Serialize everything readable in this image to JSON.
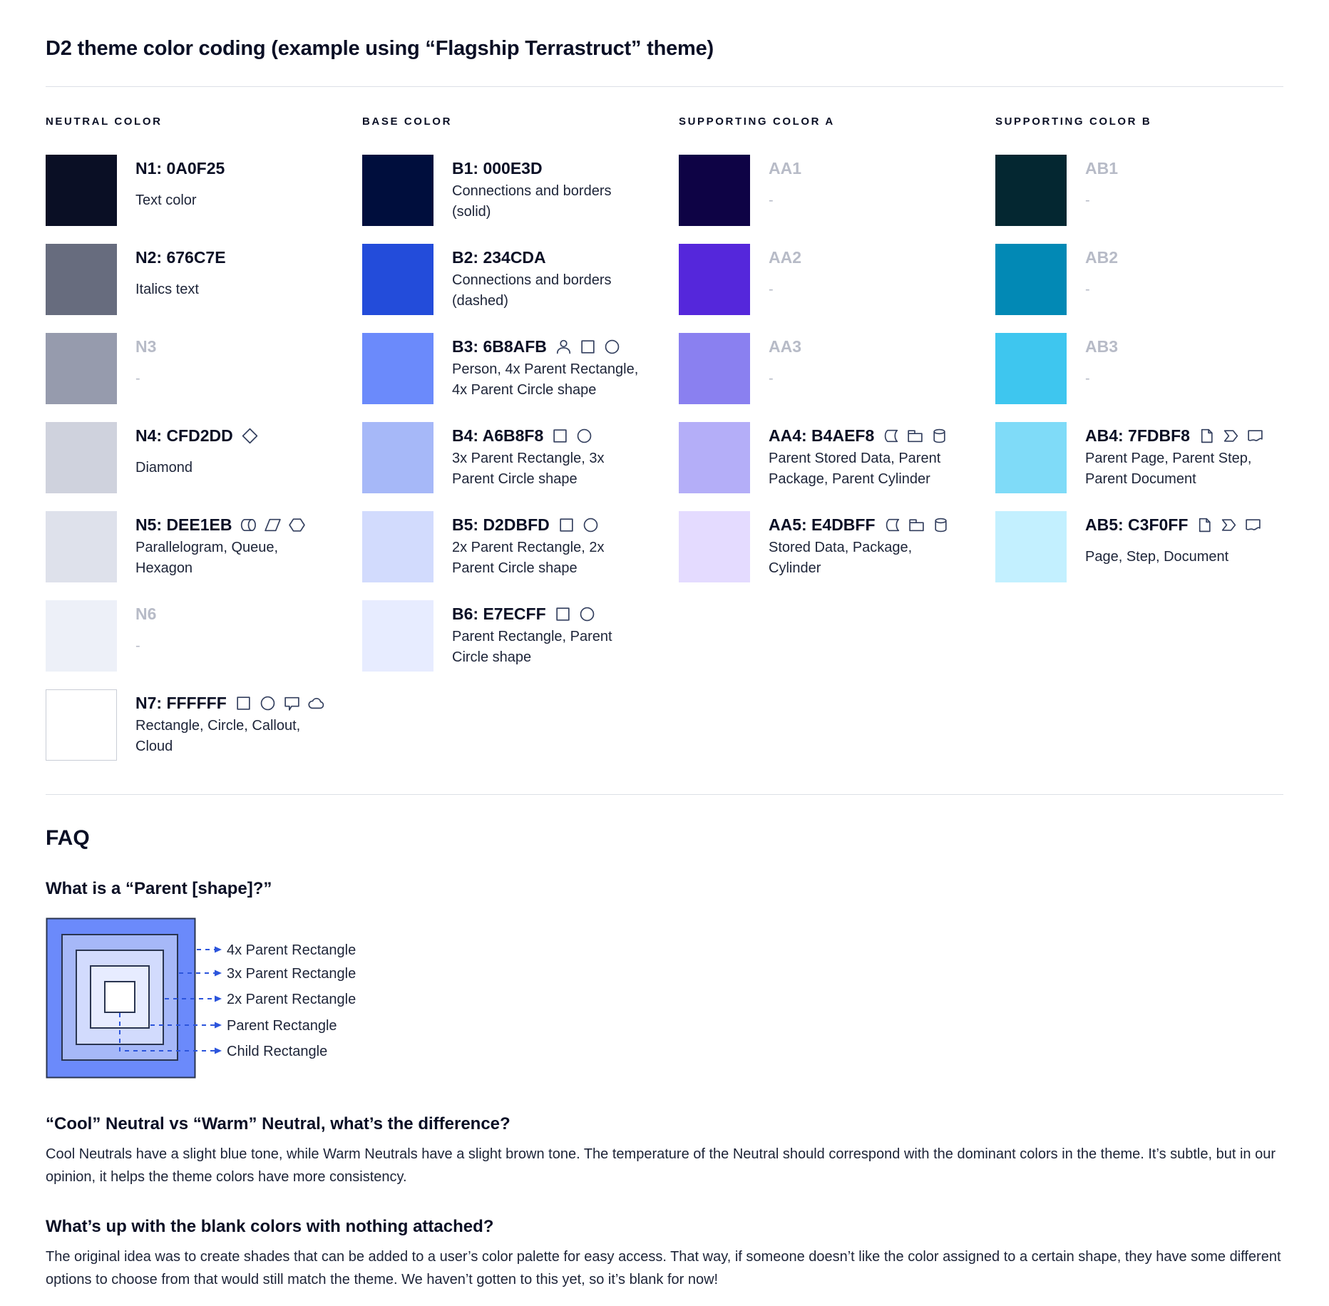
{
  "page": {
    "title": "D2 theme color coding (example using “Flagship Terrastruct” theme)"
  },
  "colors": {
    "text": "#0A0F25",
    "body": "#1D2438",
    "muted": "#B7BBC7",
    "accent": "#2C55DC",
    "icon": "#333F5E",
    "divider": "#DCE0E6",
    "swatchborder": "#C9CDD6"
  },
  "columns": [
    {
      "header": "NEUTRAL COLOR",
      "items": [
        {
          "label": "N1: 0A0F25",
          "desc": "Text color",
          "swatch": "#0A0F25",
          "muted": false,
          "bordered": false,
          "icons": []
        },
        {
          "label": "N2: 676C7E",
          "desc": "Italics text",
          "swatch": "#676C7E",
          "muted": false,
          "bordered": false,
          "icons": []
        },
        {
          "label": "N3",
          "desc": "-",
          "swatch": "#969BAD",
          "muted": true,
          "bordered": false,
          "icons": []
        },
        {
          "label": "N4: CFD2DD",
          "desc": "Diamond",
          "swatch": "#CFD2DD",
          "muted": false,
          "bordered": false,
          "icons": [
            "diamond"
          ]
        },
        {
          "label": "N5: DEE1EB",
          "desc": "Parallelogram, Queue, Hexagon",
          "swatch": "#DEE1EB",
          "muted": false,
          "bordered": false,
          "icons": [
            "queue",
            "parallelogram",
            "hexagon"
          ]
        },
        {
          "label": "N6",
          "desc": "-",
          "swatch": "#EDF0F8",
          "muted": true,
          "bordered": false,
          "icons": []
        },
        {
          "label": "N7: FFFFFF",
          "desc": "Rectangle, Circle, Callout, Cloud",
          "swatch": "#FFFFFF",
          "muted": false,
          "bordered": true,
          "icons": [
            "rectangle",
            "circle",
            "callout",
            "cloud"
          ]
        }
      ]
    },
    {
      "header": "BASE COLOR",
      "items": [
        {
          "label": "B1: 000E3D",
          "desc": "Connections and borders (solid)",
          "swatch": "#000E3D",
          "muted": false,
          "bordered": false,
          "icons": []
        },
        {
          "label": "B2: 234CDA",
          "desc": "Connections and borders (dashed)",
          "swatch": "#234CDA",
          "muted": false,
          "bordered": false,
          "icons": []
        },
        {
          "label": "B3: 6B8AFB",
          "desc": "Person, 4x Parent Rectangle, 4x Parent Circle shape",
          "swatch": "#6B8AFB",
          "muted": false,
          "bordered": false,
          "icons": [
            "person",
            "rectangle",
            "circle"
          ]
        },
        {
          "label": "B4: A6B8F8",
          "desc": "3x Parent Rectangle, 3x Parent Circle shape",
          "swatch": "#A6B8F8",
          "muted": false,
          "bordered": false,
          "icons": [
            "rectangle",
            "circle"
          ]
        },
        {
          "label": "B5: D2DBFD",
          "desc": "2x Parent Rectangle, 2x Parent Circle shape",
          "swatch": "#D2DBFD",
          "muted": false,
          "bordered": false,
          "icons": [
            "rectangle",
            "circle"
          ]
        },
        {
          "label": "B6: E7ECFF",
          "desc": "Parent Rectangle, Parent Circle shape",
          "swatch": "#E7ECFF",
          "muted": false,
          "bordered": false,
          "icons": [
            "rectangle",
            "circle"
          ]
        }
      ]
    },
    {
      "header": "SUPPORTING COLOR A",
      "items": [
        {
          "label": "AA1",
          "desc": "-",
          "swatch": "#0E0345",
          "muted": true,
          "bordered": false,
          "icons": []
        },
        {
          "label": "AA2",
          "desc": "-",
          "swatch": "#5527DB",
          "muted": true,
          "bordered": false,
          "icons": []
        },
        {
          "label": "AA3",
          "desc": "-",
          "swatch": "#8A80F0",
          "muted": true,
          "bordered": false,
          "icons": []
        },
        {
          "label": "AA4: B4AEF8",
          "desc": "Parent Stored Data, Parent Package, Parent Cylinder",
          "swatch": "#B4AEF8",
          "muted": false,
          "bordered": false,
          "icons": [
            "stored-data",
            "package",
            "cylinder"
          ]
        },
        {
          "label": "AA5: E4DBFF",
          "desc": "Stored Data, Package, Cylinder",
          "swatch": "#E4DBFF",
          "muted": false,
          "bordered": false,
          "icons": [
            "stored-data",
            "package",
            "cylinder"
          ]
        }
      ]
    },
    {
      "header": "SUPPORTING COLOR B",
      "items": [
        {
          "label": "AB1",
          "desc": "-",
          "swatch": "#042731",
          "muted": true,
          "bordered": false,
          "icons": []
        },
        {
          "label": "AB2",
          "desc": "-",
          "swatch": "#0289B5",
          "muted": true,
          "bordered": false,
          "icons": []
        },
        {
          "label": "AB3",
          "desc": "-",
          "swatch": "#3EC6EF",
          "muted": true,
          "bordered": false,
          "icons": []
        },
        {
          "label": "AB4: 7FDBF8",
          "desc": "Parent Page, Parent Step, Parent Document",
          "swatch": "#7FDBF8",
          "muted": false,
          "bordered": false,
          "icons": [
            "page",
            "step",
            "document"
          ]
        },
        {
          "label": "AB5: C3F0FF",
          "desc": "Page, Step, Document",
          "swatch": "#C3F0FF",
          "muted": false,
          "bordered": false,
          "icons": [
            "page",
            "step",
            "document"
          ]
        }
      ]
    }
  ],
  "faq": {
    "heading": "FAQ",
    "q1": "What is a “Parent [shape]?”",
    "diagram_labels": [
      "4x Parent Rectangle",
      "3x Parent Rectangle",
      "2x Parent Rectangle",
      "Parent Rectangle",
      "Child Rectangle"
    ],
    "diagram_colors": [
      "#6B8AFB",
      "#A6B8F8",
      "#D2DBFD",
      "#E7ECFF",
      "#FFFFFF"
    ],
    "q2": "“Cool” Neutral vs “Warm” Neutral, what’s the difference?",
    "a2": "Cool Neutrals have a slight blue tone, while Warm Neutrals have a slight brown tone. The temperature of the Neutral should correspond with the dominant colors in the theme. It’s subtle, but in our opinion, it helps the theme colors have more consistency.",
    "q3": "What’s up with the blank colors with nothing attached?",
    "a3": "The original idea was to create shades that can be added to a user’s color palette for easy access. That way, if someone doesn’t like the color assigned to a certain shape, they have some different options to choose from that would still match the theme. We haven’t gotten to this yet, so it’s blank for now!"
  }
}
